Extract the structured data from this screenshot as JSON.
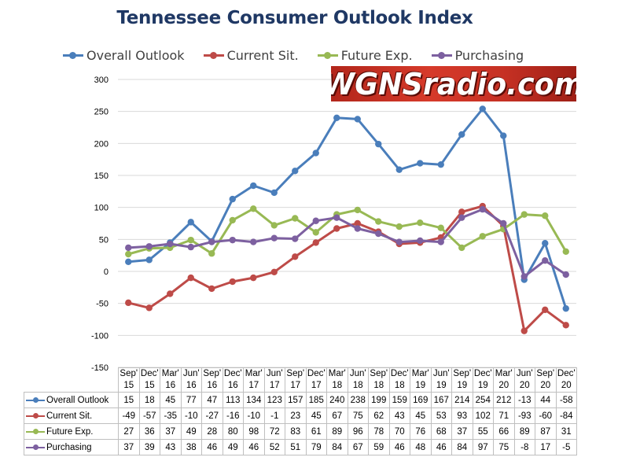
{
  "title": "Tennessee Consumer Outlook Index",
  "watermark": "WGNSradio.com",
  "chart_data": {
    "type": "line",
    "title": "Tennessee Consumer Outlook Index",
    "ylim": [
      -150,
      300
    ],
    "yticks": [
      -150,
      -100,
      -50,
      0,
      50,
      100,
      150,
      200,
      250,
      300
    ],
    "ytick_labels": [
      "-150",
      "-100",
      "-50",
      "0",
      "50",
      "100",
      "150",
      "200",
      "250",
      "300"
    ],
    "grid": true,
    "legend_position": "top",
    "categories": [
      [
        "Sep'",
        "15"
      ],
      [
        "Dec'",
        "15"
      ],
      [
        "Mar'",
        "16"
      ],
      [
        "Jun'",
        "16"
      ],
      [
        "Sep'",
        "16"
      ],
      [
        "Dec'",
        "16"
      ],
      [
        "Mar'",
        "17"
      ],
      [
        "Jun'",
        "17"
      ],
      [
        "Sep'",
        "17"
      ],
      [
        "Dec'",
        "17"
      ],
      [
        "Mar'",
        "18"
      ],
      [
        "Jun'",
        "18"
      ],
      [
        "Sep'",
        "18"
      ],
      [
        "Dec'",
        "18"
      ],
      [
        "Mar'",
        "19"
      ],
      [
        "Jun'",
        "19"
      ],
      [
        "Sep'",
        "19"
      ],
      [
        "Dec'",
        "19"
      ],
      [
        "Mar'",
        "20"
      ],
      [
        "Jun'",
        "20"
      ],
      [
        "Sep'",
        "20"
      ],
      [
        "Dec'",
        "20"
      ]
    ],
    "series": [
      {
        "name": "Overall Outlook",
        "color": "#4a7ebb",
        "values": [
          15,
          18,
          45,
          77,
          47,
          113,
          134,
          123,
          157,
          185,
          240,
          238,
          199,
          159,
          169,
          167,
          214,
          254,
          212,
          -13,
          44,
          -58
        ]
      },
      {
        "name": "Current Sit.",
        "color": "#be4b48",
        "values": [
          -49,
          -57,
          -35,
          -10,
          -27,
          -16,
          -10,
          -1,
          23,
          45,
          67,
          75,
          62,
          43,
          45,
          53,
          93,
          102,
          71,
          -93,
          -60,
          -84
        ]
      },
      {
        "name": "Future Exp.",
        "color": "#98b954",
        "values": [
          27,
          36,
          37,
          49,
          28,
          80,
          98,
          72,
          83,
          61,
          89,
          96,
          78,
          70,
          76,
          68,
          37,
          55,
          66,
          89,
          87,
          31
        ]
      },
      {
        "name": "Purchasing",
        "color": "#7d60a0",
        "values": [
          37,
          39,
          43,
          38,
          46,
          49,
          46,
          52,
          51,
          79,
          84,
          67,
          59,
          46,
          48,
          46,
          84,
          97,
          75,
          -8,
          17,
          -5
        ]
      }
    ]
  }
}
